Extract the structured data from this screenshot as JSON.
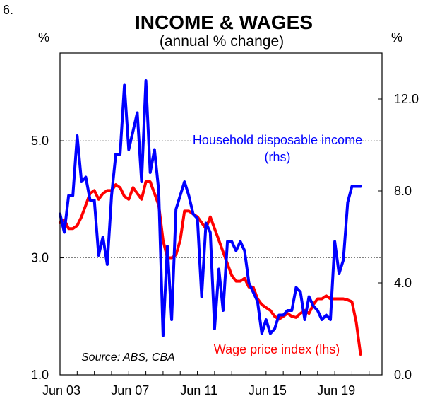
{
  "chart_data": {
    "type": "line",
    "number": "6.",
    "title": "INCOME & WAGES",
    "subtitle": "(annual % change)",
    "left_unit": "%",
    "right_unit": "%",
    "x_ticks": [
      "Jun 03",
      "Jun 07",
      "Jun 11",
      "Jun 15",
      "Jun 19"
    ],
    "x_range": [
      2003.0,
      2021.75
    ],
    "left_axis": {
      "range": [
        1.0,
        6.5
      ],
      "ticks": [
        "1.0",
        "3.0",
        "5.0"
      ],
      "tick_values": [
        1.0,
        3.0,
        5.0
      ]
    },
    "right_axis": {
      "range": [
        0.0,
        14.0
      ],
      "ticks": [
        "0.0",
        "4.0",
        "8.0",
        "12.0"
      ],
      "tick_values": [
        0.0,
        4.0,
        8.0,
        12.0
      ]
    },
    "gridlines_left": [
      3.0,
      5.0
    ],
    "source": "Source: ABS, CBA",
    "annotations": {
      "blue_label": [
        "Household disposable income",
        "(rhs)"
      ],
      "red_label": "Wage price index (lhs)"
    },
    "colors": {
      "blue": "#0000ff",
      "red": "#ff0000",
      "grid": "#808080"
    },
    "series": [
      {
        "name": "Wage price index (lhs)",
        "axis": "left",
        "color": "#ff0000",
        "x": [
          2003.0,
          2003.25,
          2003.5,
          2003.75,
          2004.0,
          2004.25,
          2004.5,
          2004.75,
          2005.0,
          2005.25,
          2005.5,
          2005.75,
          2006.0,
          2006.25,
          2006.5,
          2006.75,
          2007.0,
          2007.25,
          2007.5,
          2007.75,
          2008.0,
          2008.25,
          2008.5,
          2008.75,
          2009.0,
          2009.25,
          2009.5,
          2009.75,
          2010.0,
          2010.25,
          2010.5,
          2010.75,
          2011.0,
          2011.25,
          2011.5,
          2011.75,
          2012.0,
          2012.25,
          2012.5,
          2012.75,
          2013.0,
          2013.25,
          2013.5,
          2013.75,
          2014.0,
          2014.25,
          2014.5,
          2014.75,
          2015.0,
          2015.25,
          2015.5,
          2015.75,
          2016.0,
          2016.25,
          2016.5,
          2016.75,
          2017.0,
          2017.25,
          2017.5,
          2017.75,
          2018.0,
          2018.25,
          2018.5,
          2018.75,
          2019.0,
          2019.25,
          2019.5,
          2019.75,
          2020.0,
          2020.25,
          2020.5
        ],
        "values": [
          3.6,
          3.65,
          3.5,
          3.5,
          3.55,
          3.7,
          3.9,
          4.1,
          4.15,
          4.0,
          4.1,
          4.15,
          4.15,
          4.25,
          4.2,
          4.05,
          4.0,
          4.2,
          4.1,
          4.0,
          4.3,
          4.3,
          4.1,
          3.9,
          3.3,
          3.0,
          3.0,
          3.05,
          3.3,
          3.8,
          3.8,
          3.75,
          3.7,
          3.6,
          3.5,
          3.7,
          3.5,
          3.3,
          3.1,
          2.9,
          2.7,
          2.6,
          2.6,
          2.65,
          2.5,
          2.5,
          2.3,
          2.2,
          2.15,
          2.1,
          2.0,
          1.95,
          2.0,
          2.05,
          2.0,
          1.98,
          2.05,
          2.1,
          2.05,
          2.2,
          2.3,
          2.3,
          2.35,
          2.3,
          2.3,
          2.3,
          2.3,
          2.28,
          2.25,
          1.9,
          1.35
        ]
      },
      {
        "name": "Household disposable income (rhs)",
        "axis": "right",
        "color": "#0000ff",
        "x": [
          2003.0,
          2003.25,
          2003.5,
          2003.75,
          2004.0,
          2004.25,
          2004.5,
          2004.75,
          2005.0,
          2005.25,
          2005.5,
          2005.75,
          2006.0,
          2006.25,
          2006.5,
          2006.75,
          2007.0,
          2007.25,
          2007.5,
          2007.75,
          2008.0,
          2008.25,
          2008.5,
          2008.75,
          2009.0,
          2009.25,
          2009.5,
          2009.75,
          2010.0,
          2010.25,
          2010.5,
          2010.75,
          2011.0,
          2011.25,
          2011.5,
          2011.75,
          2012.0,
          2012.25,
          2012.5,
          2012.75,
          2013.0,
          2013.25,
          2013.5,
          2013.75,
          2014.0,
          2014.25,
          2014.5,
          2014.75,
          2015.0,
          2015.25,
          2015.5,
          2015.75,
          2016.0,
          2016.25,
          2016.5,
          2016.75,
          2017.0,
          2017.25,
          2017.5,
          2017.75,
          2018.0,
          2018.25,
          2018.5,
          2018.75,
          2019.0,
          2019.25,
          2019.5,
          2019.75,
          2020.0,
          2020.25,
          2020.5
        ],
        "values": [
          7.0,
          6.2,
          7.8,
          7.8,
          10.4,
          8.4,
          8.6,
          7.6,
          7.6,
          5.2,
          6.0,
          4.8,
          7.8,
          9.6,
          9.6,
          12.6,
          9.8,
          10.6,
          11.4,
          8.4,
          12.8,
          8.8,
          9.8,
          8.0,
          1.7,
          5.6,
          2.4,
          7.2,
          7.8,
          8.4,
          7.8,
          7.0,
          6.8,
          3.4,
          6.6,
          6.2,
          2.0,
          4.6,
          2.8,
          5.8,
          5.8,
          5.4,
          5.8,
          5.4,
          4.0,
          3.6,
          3.2,
          1.8,
          2.4,
          1.8,
          2.0,
          2.6,
          2.6,
          2.8,
          2.8,
          3.8,
          3.6,
          2.4,
          3.4,
          3.0,
          2.8,
          2.4,
          2.6,
          2.4,
          5.8,
          4.4,
          5.0,
          7.5,
          8.2,
          8.2,
          8.2
        ]
      }
    ]
  }
}
